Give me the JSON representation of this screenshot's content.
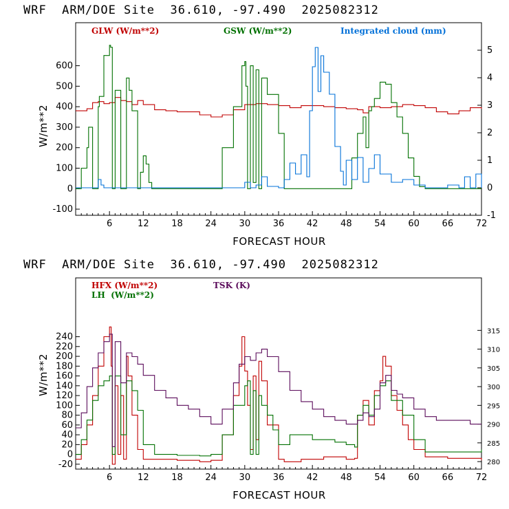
{
  "chart_data": [
    {
      "type": "line",
      "title": "WRF  ARM/DOE Site  36.610, -97.490  2025082312",
      "xlabel": "FORECAST HOUR",
      "ylabel": "W/m**2",
      "xlim": [
        0,
        72
      ],
      "ylim": [
        -130,
        810
      ],
      "y2lim": [
        -1,
        6
      ],
      "xticks": [
        "6",
        "12",
        "18",
        "24",
        "30",
        "36",
        "42",
        "48",
        "54",
        "60",
        "66",
        "72"
      ],
      "yticks": [
        "-100",
        "0",
        "100",
        "200",
        "300",
        "400",
        "500",
        "600"
      ],
      "y2ticks": [
        "-1",
        "0",
        "1",
        "2",
        "3",
        "4",
        "5"
      ],
      "series": [
        {
          "name": "GLW (W/m**2)",
          "color": "#c00000",
          "axis": "left",
          "x": [
            0,
            2,
            3,
            4,
            5,
            6,
            7,
            8,
            9,
            10,
            11,
            12,
            14,
            16,
            18,
            20,
            22,
            24,
            26,
            28,
            30,
            32,
            34,
            36,
            38,
            40,
            42,
            44,
            46,
            48,
            50,
            51,
            52,
            54,
            56,
            58,
            60,
            62,
            64,
            66,
            68,
            70,
            72
          ],
          "y": [
            380,
            390,
            420,
            425,
            415,
            420,
            445,
            430,
            425,
            410,
            430,
            410,
            385,
            380,
            375,
            375,
            360,
            350,
            360,
            385,
            410,
            415,
            410,
            405,
            395,
            405,
            405,
            400,
            395,
            390,
            385,
            370,
            400,
            395,
            400,
            410,
            405,
            395,
            375,
            365,
            380,
            395,
            390
          ]
        },
        {
          "name": "GSW (W/m**2)",
          "color": "#007000",
          "axis": "left",
          "x": [
            0,
            1,
            2,
            2.3,
            3,
            4,
            4.2,
            5,
            6,
            6.2,
            6.5,
            7,
            8,
            9,
            9.5,
            10,
            11,
            11.5,
            12,
            12.5,
            13,
            13.5,
            24,
            26,
            28,
            29.5,
            30,
            30.2,
            30.5,
            31,
            31.5,
            32,
            32.5,
            33,
            34,
            36,
            37,
            48,
            49,
            50,
            51,
            51.5,
            52,
            52.5,
            53,
            54,
            55,
            56,
            57,
            58,
            59,
            60,
            61,
            62,
            72
          ],
          "y": [
            0,
            100,
            200,
            300,
            0,
            400,
            450,
            650,
            700,
            690,
            0,
            480,
            0,
            540,
            480,
            380,
            0,
            80,
            160,
            120,
            30,
            0,
            0,
            200,
            400,
            600,
            620,
            500,
            0,
            600,
            30,
            580,
            0,
            540,
            460,
            270,
            0,
            0,
            150,
            270,
            350,
            200,
            380,
            400,
            440,
            520,
            510,
            420,
            350,
            270,
            150,
            60,
            10,
            0,
            0
          ]
        },
        {
          "name": "Integrated cloud (mm)",
          "color": "#0070d8",
          "axis": "right",
          "x": [
            0,
            3,
            4,
            4.5,
            5,
            8,
            29,
            30,
            31,
            32,
            33,
            34,
            36,
            37,
            38,
            39,
            40,
            41,
            41.5,
            42,
            42.5,
            43,
            43.5,
            44,
            45,
            46,
            47,
            47.5,
            48,
            49,
            50,
            51,
            52,
            53,
            54,
            56,
            58,
            60,
            62,
            64,
            66,
            68,
            69,
            70,
            71,
            72
          ],
          "y": [
            0,
            0,
            0.3,
            0.1,
            0,
            0,
            0,
            0.2,
            0,
            0.1,
            0.4,
            0.05,
            0,
            0.3,
            0.9,
            0.5,
            1.2,
            0.4,
            2.8,
            4.4,
            5.1,
            3.5,
            4.8,
            4.2,
            3.4,
            1.5,
            0.6,
            0.1,
            1.0,
            0.3,
            1.1,
            0.2,
            0.7,
            1.2,
            0.5,
            0.2,
            0.3,
            0.1,
            0,
            0,
            0.1,
            0,
            0.4,
            0,
            0.5,
            0
          ]
        }
      ]
    },
    {
      "type": "line",
      "title": "WRF  ARM/DOE Site  36.610, -97.490  2025082312",
      "xlabel": "FORECAST HOUR",
      "ylabel": "W/m**2",
      "xlim": [
        0,
        72
      ],
      "ylim": [
        -30,
        360
      ],
      "y2lim": [
        278,
        329
      ],
      "xticks": [
        "6",
        "12",
        "18",
        "24",
        "30",
        "36",
        "42",
        "48",
        "54",
        "60",
        "66",
        "72"
      ],
      "yticks": [
        "-20",
        "0",
        "20",
        "40",
        "60",
        "80",
        "100",
        "120",
        "140",
        "160",
        "180",
        "200",
        "220",
        "240"
      ],
      "y2ticks": [
        "280",
        "285",
        "290",
        "295",
        "300",
        "305",
        "310",
        "315"
      ],
      "series": [
        {
          "name": "HFX (W/m**2)",
          "color": "#c00000",
          "axis": "left",
          "x": [
            0,
            1,
            2,
            3,
            4,
            5,
            6,
            6.3,
            6.5,
            7,
            7.5,
            8,
            8.5,
            9,
            9.3,
            10,
            11,
            12,
            14,
            18,
            22,
            24,
            26,
            28,
            29,
            29.5,
            30,
            30.5,
            31,
            31.5,
            32,
            32.5,
            33,
            34,
            36,
            37,
            40,
            44,
            48,
            49.5,
            50,
            51,
            52,
            53,
            54,
            54.5,
            55,
            56,
            57,
            58,
            59,
            60,
            62,
            66,
            72
          ],
          "y": [
            -10,
            20,
            60,
            120,
            180,
            240,
            260,
            180,
            -20,
            140,
            0,
            120,
            -10,
            200,
            160,
            80,
            10,
            -10,
            -10,
            -12,
            -15,
            -12,
            40,
            120,
            180,
            240,
            170,
            100,
            10,
            160,
            30,
            190,
            150,
            60,
            -10,
            -15,
            -10,
            -5,
            -10,
            -8,
            80,
            110,
            60,
            130,
            150,
            200,
            180,
            120,
            90,
            60,
            30,
            10,
            -5,
            -8,
            -12
          ]
        },
        {
          "name": "LH  (W/m**2)",
          "color": "#007000",
          "axis": "left",
          "x": [
            0,
            1,
            2,
            3,
            4,
            5,
            6,
            6.5,
            7,
            8,
            9,
            10,
            11,
            12,
            14,
            18,
            22,
            24,
            26,
            28,
            30,
            30.5,
            31,
            31.5,
            32,
            32.5,
            33,
            34,
            35,
            36,
            37,
            38,
            42,
            46,
            48,
            49.5,
            50,
            51,
            52,
            53,
            54,
            55,
            56,
            58,
            60,
            62,
            66,
            72
          ],
          "y": [
            0,
            30,
            70,
            110,
            140,
            150,
            160,
            0,
            160,
            40,
            150,
            130,
            90,
            20,
            0,
            -2,
            -3,
            0,
            40,
            100,
            140,
            150,
            0,
            130,
            0,
            120,
            100,
            80,
            50,
            20,
            20,
            40,
            30,
            25,
            20,
            15,
            80,
            100,
            80,
            120,
            140,
            150,
            110,
            80,
            30,
            5,
            5,
            10
          ]
        },
        {
          "name": "TSK (K)",
          "color": "#5a0a5a",
          "axis": "right",
          "x": [
            0,
            1,
            2,
            3,
            4,
            5,
            6,
            6.5,
            7,
            8,
            9,
            10,
            11,
            12,
            14,
            16,
            18,
            20,
            22,
            24,
            26,
            28,
            29,
            30,
            31,
            32,
            33,
            34,
            36,
            38,
            40,
            42,
            44,
            46,
            48,
            50,
            51,
            52,
            53,
            54,
            55,
            56,
            57,
            58,
            60,
            62,
            64,
            66,
            68,
            70,
            72
          ],
          "y": [
            289,
            293,
            300,
            305,
            309,
            312,
            314,
            284,
            312,
            301,
            309,
            308,
            306,
            303,
            299,
            297,
            295,
            294,
            292,
            290,
            294,
            301,
            306,
            308,
            307,
            309,
            310,
            308,
            304,
            299,
            296,
            294,
            292,
            291,
            290,
            291,
            293,
            292,
            294,
            301,
            303,
            299,
            298,
            297,
            294,
            292,
            291,
            291,
            291,
            290,
            290
          ]
        }
      ]
    }
  ]
}
